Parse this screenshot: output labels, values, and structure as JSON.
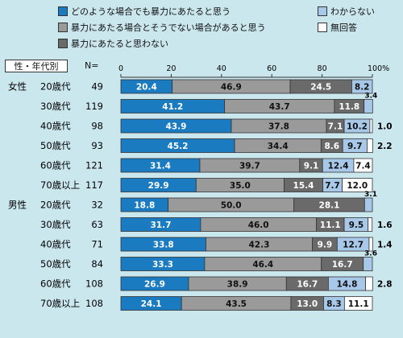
{
  "legend": [
    {
      "label": "どのような場合でも暴力にあたると思う",
      "color": "#1b7bc0"
    },
    {
      "label": "暴力にあたる場合とそうでない場合があると思う",
      "color": "#9a9a9a"
    },
    {
      "label": "暴力にあたると思わない",
      "color": "#6a6a6a"
    },
    {
      "label": "わからない",
      "color": "#a8c8ea"
    },
    {
      "label": "無回答",
      "color": "#ffffff"
    }
  ],
  "header": {
    "group_label": "性・年代別",
    "n_label": "N="
  },
  "chart_data": {
    "type": "bar",
    "orientation": "horizontal",
    "stacked": true,
    "xlim": [
      0,
      100
    ],
    "x_ticks": [
      "0",
      "20",
      "40",
      "60",
      "80",
      "100%"
    ],
    "series_names": [
      "どのような場合でも暴力にあたると思う",
      "暴力にあたる場合とそうでない場合があると思う",
      "暴力にあたると思わない",
      "わからない",
      "無回答"
    ],
    "rows": [
      {
        "group": "女性",
        "age": "20歳代",
        "n": "49",
        "values": [
          20.4,
          46.9,
          24.5,
          8.2,
          0
        ],
        "labels": [
          "20.4",
          "46.9",
          "24.5",
          "8.2",
          ""
        ],
        "outside": ""
      },
      {
        "group": "",
        "age": "30歳代",
        "n": "119",
        "values": [
          41.2,
          43.7,
          11.8,
          3.4,
          0
        ],
        "labels": [
          "41.2",
          "43.7",
          "11.8",
          "3.4",
          ""
        ],
        "outside": ""
      },
      {
        "group": "",
        "age": "40歳代",
        "n": "98",
        "values": [
          43.9,
          37.8,
          7.1,
          10.2,
          1.0
        ],
        "labels": [
          "43.9",
          "37.8",
          "7.1",
          "10.2",
          "1.0"
        ],
        "outside": "1.0"
      },
      {
        "group": "",
        "age": "50歳代",
        "n": "93",
        "values": [
          45.2,
          34.4,
          8.6,
          9.7,
          2.2
        ],
        "labels": [
          "45.2",
          "34.4",
          "8.6",
          "9.7",
          "2.2"
        ],
        "outside": "2.2"
      },
      {
        "group": "",
        "age": "60歳代",
        "n": "121",
        "values": [
          31.4,
          39.7,
          9.1,
          12.4,
          7.4
        ],
        "labels": [
          "31.4",
          "39.7",
          "9.1",
          "12.4",
          "7.4"
        ],
        "outside": ""
      },
      {
        "group": "",
        "age": "70歳以上",
        "n": "117",
        "values": [
          29.9,
          35.0,
          15.4,
          7.7,
          12.0
        ],
        "labels": [
          "29.9",
          "35.0",
          "15.4",
          "7.7",
          "12.0"
        ],
        "outside": ""
      },
      {
        "group": "男性",
        "age": "20歳代",
        "n": "32",
        "values": [
          18.8,
          50.0,
          28.1,
          3.1,
          0
        ],
        "labels": [
          "18.8",
          "50.0",
          "28.1",
          "3.1",
          ""
        ],
        "outside": ""
      },
      {
        "group": "",
        "age": "30歳代",
        "n": "63",
        "values": [
          31.7,
          46.0,
          11.1,
          9.5,
          1.6
        ],
        "labels": [
          "31.7",
          "46.0",
          "11.1",
          "9.5",
          "1.6"
        ],
        "outside": "1.6"
      },
      {
        "group": "",
        "age": "40歳代",
        "n": "71",
        "values": [
          33.8,
          42.3,
          9.9,
          12.7,
          1.4
        ],
        "labels": [
          "33.8",
          "42.3",
          "9.9",
          "12.7",
          "1.4"
        ],
        "outside": "1.4"
      },
      {
        "group": "",
        "age": "50歳代",
        "n": "84",
        "values": [
          33.3,
          46.4,
          16.7,
          3.6,
          0
        ],
        "labels": [
          "33.3",
          "46.4",
          "16.7",
          "3.6",
          ""
        ],
        "outside": ""
      },
      {
        "group": "",
        "age": "60歳代",
        "n": "108",
        "values": [
          26.9,
          38.9,
          16.7,
          14.8,
          2.8
        ],
        "labels": [
          "26.9",
          "38.9",
          "16.7",
          "14.8",
          "2.8"
        ],
        "outside": "2.8"
      },
      {
        "group": "",
        "age": "70歳以上",
        "n": "108",
        "values": [
          24.1,
          43.5,
          13.0,
          8.3,
          11.1
        ],
        "labels": [
          "24.1",
          "43.5",
          "13.0",
          "8.3",
          "11.1"
        ],
        "outside": ""
      }
    ]
  }
}
